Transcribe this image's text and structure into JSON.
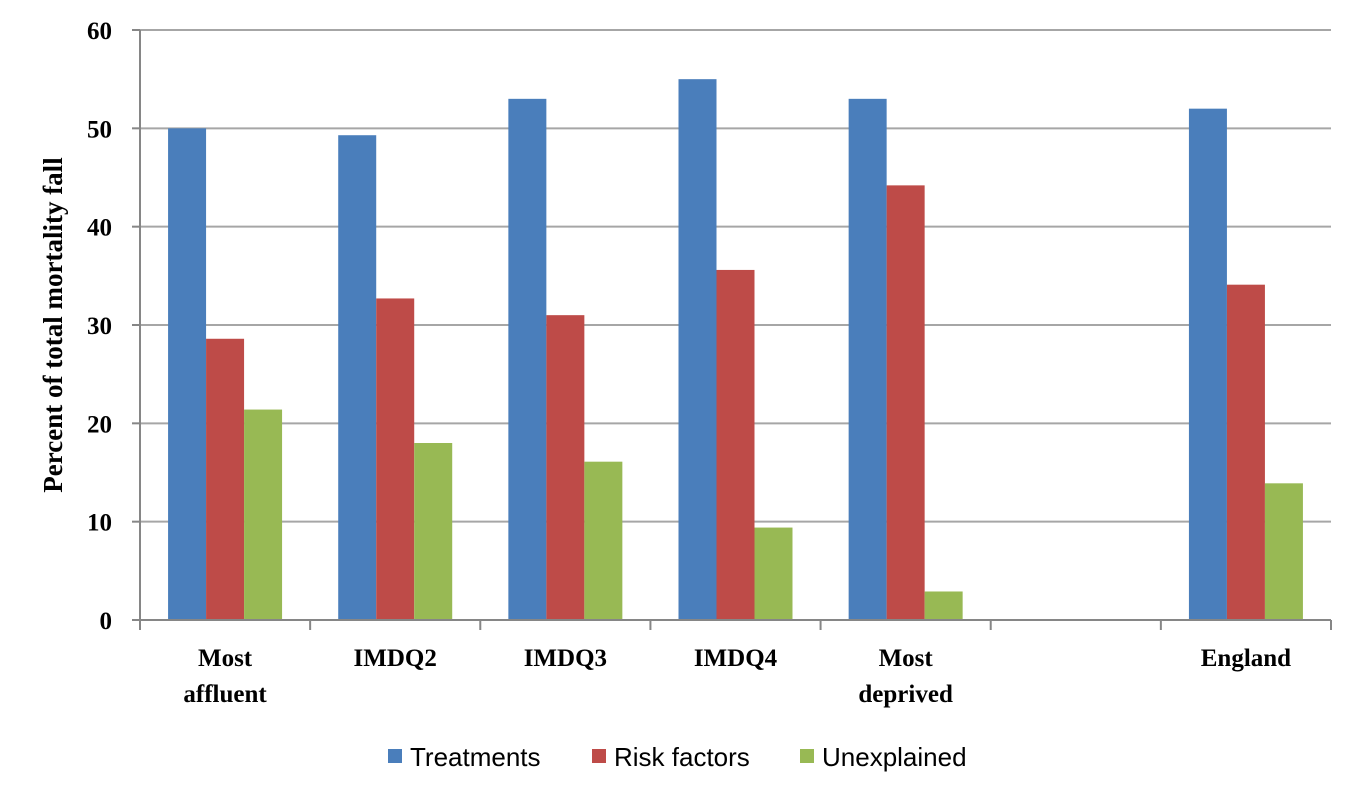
{
  "chart_data": {
    "type": "bar",
    "title": "",
    "xlabel": "",
    "ylabel": "Percent of total mortality fall",
    "ylim": [
      0,
      60
    ],
    "yticks": [
      0,
      10,
      20,
      30,
      40,
      50,
      60
    ],
    "grid": true,
    "legend_position": "bottom",
    "categories": [
      [
        "Most",
        "affluent"
      ],
      [
        "IMDQ2"
      ],
      [
        "IMDQ3"
      ],
      [
        "IMDQ4"
      ],
      [
        "Most",
        "deprived"
      ],
      [
        ""
      ],
      [
        "England"
      ]
    ],
    "series": [
      {
        "name": "Treatments",
        "color": "#4A7EBB",
        "values": [
          50,
          49.3,
          53,
          55,
          53,
          null,
          52
        ]
      },
      {
        "name": "Risk factors",
        "color": "#BE4B48",
        "values": [
          28.6,
          32.7,
          31,
          35.6,
          44.2,
          null,
          34.1
        ]
      },
      {
        "name": "Unexplained",
        "color": "#98B954",
        "values": [
          21.4,
          18,
          16.1,
          9.4,
          2.9,
          null,
          13.9
        ]
      }
    ]
  }
}
